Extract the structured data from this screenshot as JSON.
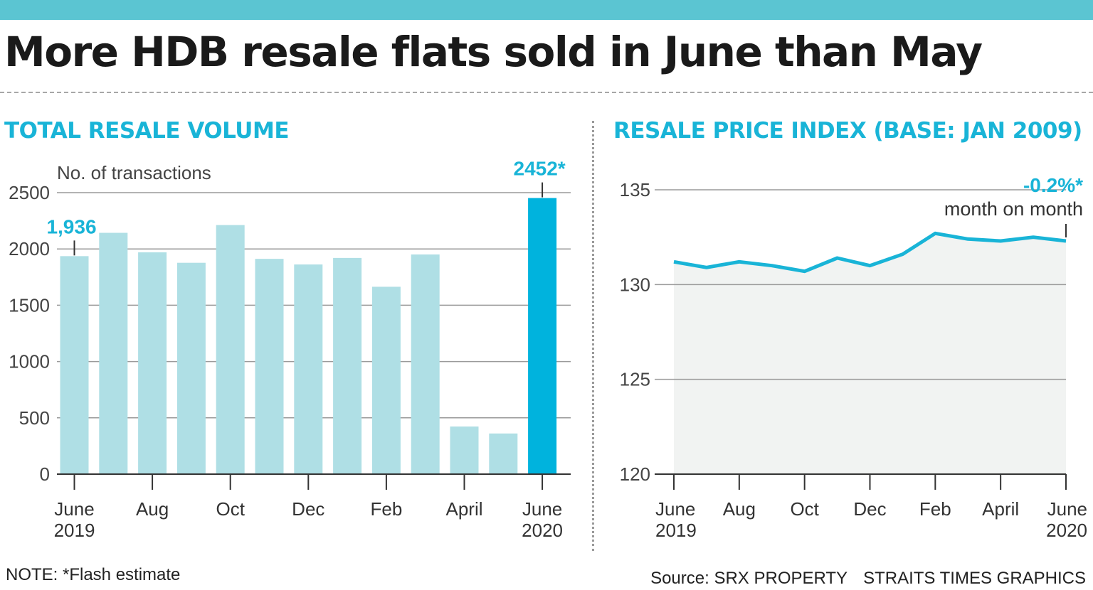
{
  "headline": "More HDB resale flats sold in June than May",
  "note": "NOTE: *Flash estimate",
  "source": "Source: SRX PROPERTY",
  "credit": "STRAITS TIMES GRAPHICS",
  "colors": {
    "accent": "#19b4d7",
    "bar_light": "#afdfe5",
    "bar_highlight": "#00b3dd",
    "line": "#19b4d7",
    "area_fill": "#f1f3f2",
    "top_bar": "#5bc5d2",
    "grid": "#9a9a9a"
  },
  "chart_data": [
    {
      "type": "bar",
      "title": "TOTAL RESALE VOLUME",
      "ylabel": "No. of transactions",
      "xlabel": "",
      "ylim": [
        0,
        2500
      ],
      "yticks": [
        "0",
        "500",
        "1000",
        "1500",
        "2000",
        "2500"
      ],
      "categories": [
        "June 2019",
        "July 2019",
        "Aug 2019",
        "Sep 2019",
        "Oct 2019",
        "Nov 2019",
        "Dec 2019",
        "Jan 2020",
        "Feb 2020",
        "Mar 2020",
        "April 2020",
        "May 2020",
        "June 2020"
      ],
      "values": [
        1936,
        2143,
        1970,
        1877,
        2212,
        1912,
        1862,
        1920,
        1664,
        1951,
        423,
        361,
        2452
      ],
      "highlight_index": 12,
      "tick_labels": [
        {
          "index": 0,
          "line1": "June",
          "line2": "2019"
        },
        {
          "index": 2,
          "line1": "Aug",
          "line2": ""
        },
        {
          "index": 4,
          "line1": "Oct",
          "line2": ""
        },
        {
          "index": 6,
          "line1": "Dec",
          "line2": ""
        },
        {
          "index": 8,
          "line1": "Feb",
          "line2": ""
        },
        {
          "index": 10,
          "line1": "April",
          "line2": ""
        },
        {
          "index": 12,
          "line1": "June",
          "line2": "2020"
        }
      ],
      "annotations": [
        {
          "index": 0,
          "text": "1,936"
        },
        {
          "index": 12,
          "text": "2452*"
        }
      ]
    },
    {
      "type": "area",
      "title": "RESALE PRICE INDEX (BASE: JAN 2009)",
      "ylim": [
        120,
        135
      ],
      "yticks": [
        "120",
        "125",
        "130",
        "135"
      ],
      "x": [
        "June 2019",
        "July 2019",
        "Aug 2019",
        "Sep 2019",
        "Oct 2019",
        "Nov 2019",
        "Dec 2019",
        "Jan 2020",
        "Feb 2020",
        "Mar 2020",
        "April 2020",
        "May 2020",
        "June 2020"
      ],
      "values": [
        131.2,
        130.9,
        131.2,
        131.0,
        130.7,
        131.4,
        131.0,
        131.6,
        132.7,
        132.4,
        132.3,
        132.5,
        132.3
      ],
      "tick_labels": [
        {
          "index": 0,
          "line1": "June",
          "line2": "2019"
        },
        {
          "index": 2,
          "line1": "Aug",
          "line2": ""
        },
        {
          "index": 4,
          "line1": "Oct",
          "line2": ""
        },
        {
          "index": 6,
          "line1": "Dec",
          "line2": ""
        },
        {
          "index": 8,
          "line1": "Feb",
          "line2": ""
        },
        {
          "index": 10,
          "line1": "April",
          "line2": ""
        },
        {
          "index": 12,
          "line1": "June",
          "line2": "2020"
        }
      ],
      "annotation": {
        "index": 12,
        "value": "-0.2%*",
        "text": "month on month"
      }
    }
  ]
}
